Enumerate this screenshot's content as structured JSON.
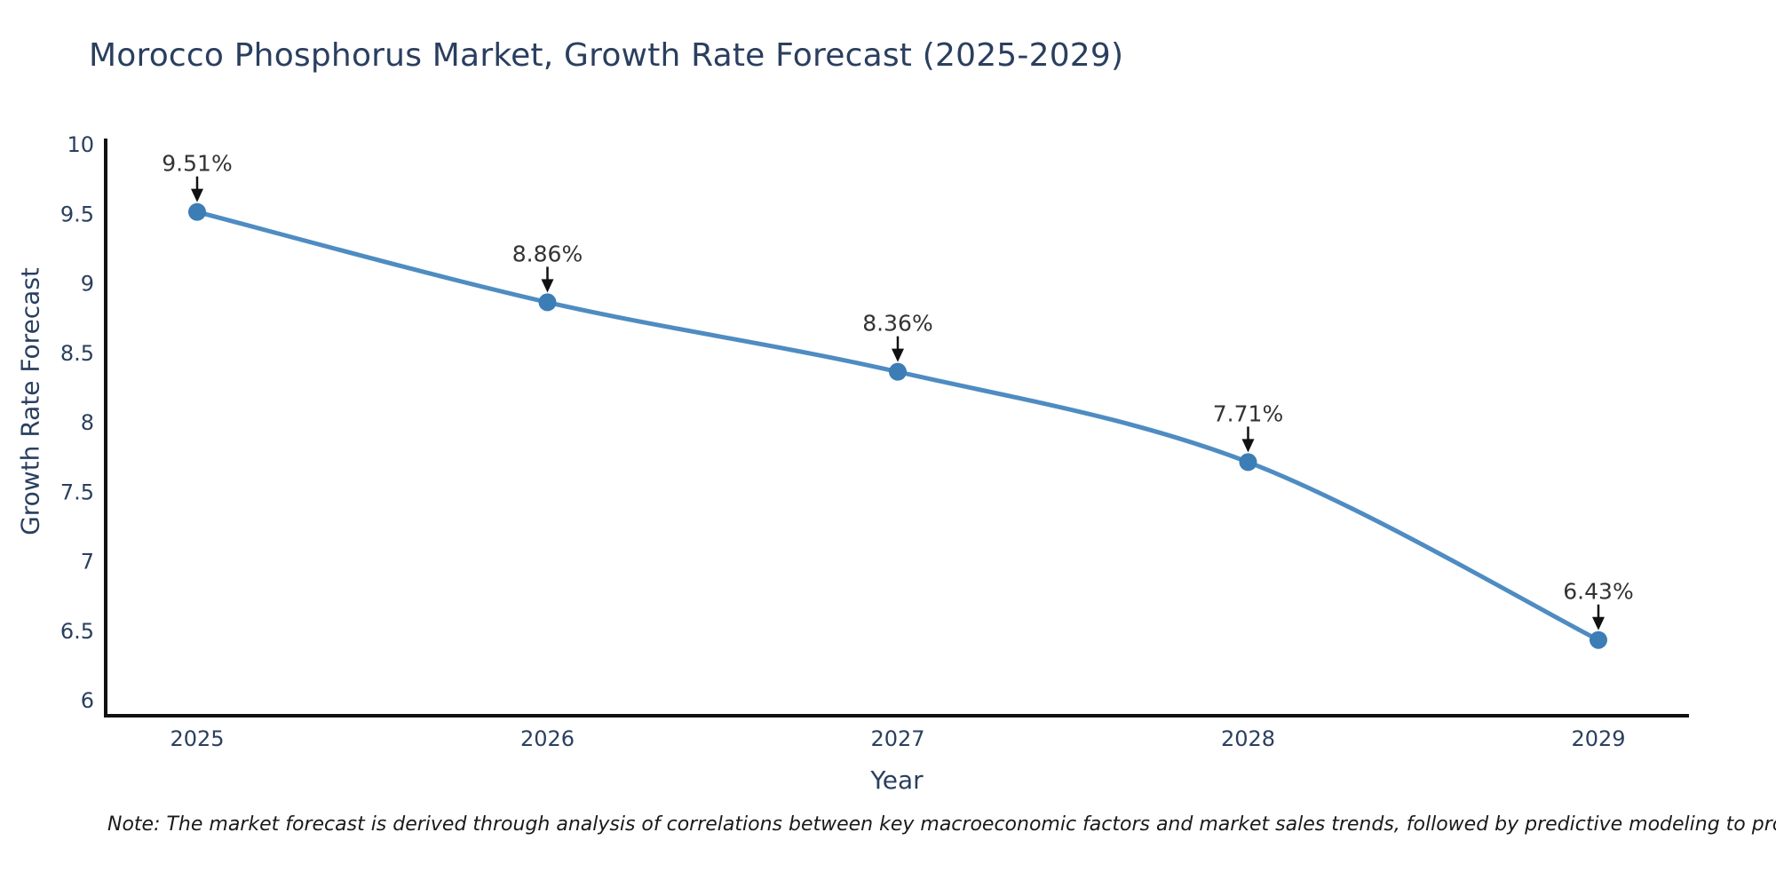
{
  "note": "Note: The market forecast is derived through analysis of correlations between key macroeconomic factors and market sales trends, followed by predictive modeling to project future sales",
  "chart_data": {
    "type": "line",
    "title": "Morocco Phosphorus Market, Growth Rate Forecast (2025-2029)",
    "xlabel": "Year",
    "ylabel": "Growth Rate Forecast",
    "x": [
      2025,
      2026,
      2027,
      2028,
      2029
    ],
    "values": [
      9.51,
      8.86,
      8.36,
      7.71,
      6.43
    ],
    "point_labels": [
      "9.51%",
      "8.86%",
      "8.36%",
      "7.71%",
      "6.43%"
    ],
    "xtick_labels": [
      "2025",
      "2026",
      "2027",
      "2028",
      "2029"
    ],
    "yticks": [
      6,
      6.5,
      7,
      7.5,
      8,
      8.5,
      9,
      9.5,
      10
    ],
    "ytick_labels": [
      "6",
      "6.5",
      "7",
      "7.5",
      "8",
      "8.5",
      "9",
      "9.5",
      "10"
    ],
    "ylim": [
      5.96,
      10.04
    ],
    "line_shape": "spline",
    "grid": false,
    "legend": "none",
    "colors": {
      "line": "#4e8cc2",
      "marker": "#3c7db6",
      "axis": "#111111",
      "axis_text": "#2a3f5f",
      "point_label_text": "#333333",
      "arrow": "#111111"
    }
  }
}
